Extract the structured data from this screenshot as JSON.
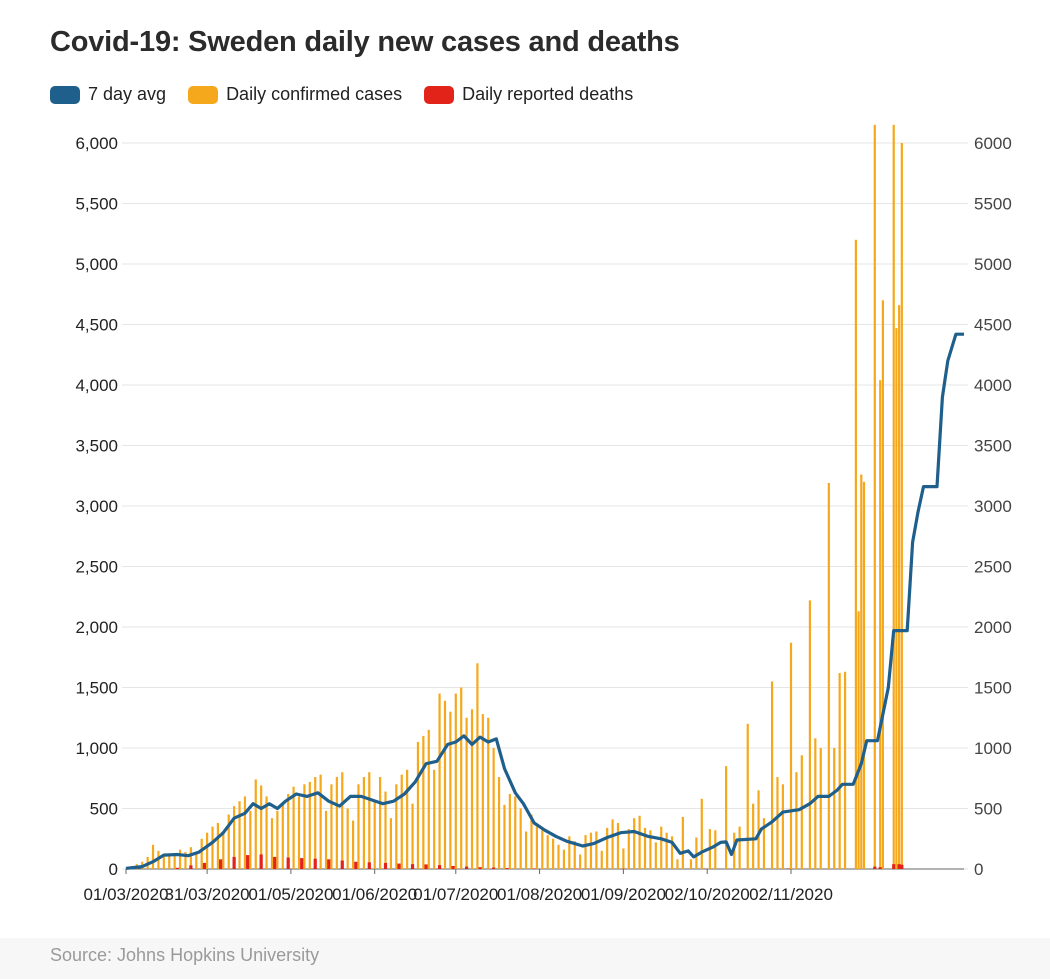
{
  "title": "Covid-19: Sweden daily new cases and deaths",
  "source": "Source: Johns Hopkins University",
  "colors": {
    "avg": "#1f5f8b",
    "cases": "#f5a81c",
    "deaths": "#e2231a",
    "grid": "#e6e6e6"
  },
  "legend": [
    {
      "label": "7 day avg",
      "color": "#1f5f8b"
    },
    {
      "label": "Daily confirmed cases",
      "color": "#f5a81c"
    },
    {
      "label": "Daily reported deaths",
      "color": "#e2231a"
    }
  ],
  "chart_data": {
    "type": "bar",
    "title": "Covid-19: Sweden daily new cases and deaths",
    "x_range": [
      "01/03/2020",
      "08/11/2020"
    ],
    "ylim": [
      0,
      6000
    ],
    "grid": true,
    "legend_position": "top-left",
    "y_ticks_left": [
      "0",
      "500",
      "1,000",
      "1,500",
      "2,000",
      "2,500",
      "3,000",
      "3,500",
      "4,000",
      "4,500",
      "5,000",
      "5,500",
      "6,000"
    ],
    "y_ticks_right": [
      "0",
      "500",
      "1000",
      "1500",
      "2000",
      "2500",
      "3000",
      "3500",
      "4000",
      "4500",
      "5000",
      "5500",
      "6000"
    ],
    "x_ticks": [
      {
        "label": "01/03/2020",
        "date": "2020-03-01"
      },
      {
        "label": "31/03/2020",
        "date": "2020-03-31"
      },
      {
        "label": "01/05/2020",
        "date": "2020-05-01"
      },
      {
        "label": "01/06/2020",
        "date": "2020-06-01"
      },
      {
        "label": "01/07/2020",
        "date": "2020-07-01"
      },
      {
        "label": "01/08/2020",
        "date": "2020-08-01"
      },
      {
        "label": "01/09/2020",
        "date": "2020-09-01"
      },
      {
        "label": "02/10/2020",
        "date": "2020-10-02"
      },
      {
        "label": "02/11/2020",
        "date": "2020-11-02"
      }
    ],
    "series": [
      {
        "name": "7 day avg",
        "type": "line",
        "points": [
          [
            "2020-03-01",
            5
          ],
          [
            "2020-03-07",
            20
          ],
          [
            "2020-03-11",
            60
          ],
          [
            "2020-03-15",
            115
          ],
          [
            "2020-03-20",
            120
          ],
          [
            "2020-03-24",
            110
          ],
          [
            "2020-03-28",
            140
          ],
          [
            "2020-04-02",
            220
          ],
          [
            "2020-04-06",
            300
          ],
          [
            "2020-04-10",
            420
          ],
          [
            "2020-04-14",
            460
          ],
          [
            "2020-04-17",
            540
          ],
          [
            "2020-04-20",
            500
          ],
          [
            "2020-04-23",
            540
          ],
          [
            "2020-04-26",
            500
          ],
          [
            "2020-04-29",
            560
          ],
          [
            "2020-05-03",
            620
          ],
          [
            "2020-05-07",
            600
          ],
          [
            "2020-05-11",
            630
          ],
          [
            "2020-05-15",
            560
          ],
          [
            "2020-05-19",
            520
          ],
          [
            "2020-05-23",
            600
          ],
          [
            "2020-05-27",
            600
          ],
          [
            "2020-05-31",
            570
          ],
          [
            "2020-06-04",
            540
          ],
          [
            "2020-06-08",
            560
          ],
          [
            "2020-06-12",
            620
          ],
          [
            "2020-06-16",
            720
          ],
          [
            "2020-06-20",
            870
          ],
          [
            "2020-06-24",
            890
          ],
          [
            "2020-06-28",
            1030
          ],
          [
            "2020-07-01",
            1050
          ],
          [
            "2020-07-04",
            1100
          ],
          [
            "2020-07-07",
            1030
          ],
          [
            "2020-07-10",
            1090
          ],
          [
            "2020-07-13",
            1050
          ],
          [
            "2020-07-16",
            1075
          ],
          [
            "2020-07-19",
            830
          ],
          [
            "2020-07-23",
            630
          ],
          [
            "2020-07-26",
            540
          ],
          [
            "2020-07-30",
            380
          ],
          [
            "2020-08-03",
            320
          ],
          [
            "2020-08-07",
            270
          ],
          [
            "2020-08-11",
            230
          ],
          [
            "2020-08-17",
            190
          ],
          [
            "2020-08-21",
            210
          ],
          [
            "2020-08-26",
            260
          ],
          [
            "2020-08-31",
            300
          ],
          [
            "2020-09-05",
            310
          ],
          [
            "2020-09-10",
            270
          ],
          [
            "2020-09-15",
            250
          ],
          [
            "2020-09-19",
            220
          ],
          [
            "2020-09-22",
            130
          ],
          [
            "2020-09-25",
            150
          ],
          [
            "2020-09-27",
            100
          ],
          [
            "2020-09-30",
            140
          ],
          [
            "2020-10-04",
            180
          ],
          [
            "2020-10-07",
            220
          ],
          [
            "2020-10-09",
            225
          ],
          [
            "2020-10-11",
            120
          ],
          [
            "2020-10-13",
            240
          ],
          [
            "2020-10-20",
            250
          ],
          [
            "2020-10-22",
            330
          ],
          [
            "2020-10-26",
            390
          ],
          [
            "2020-10-30",
            470
          ],
          [
            "2020-11-05",
            490
          ],
          [
            "2020-11-09",
            540
          ],
          [
            "2020-11-12",
            600
          ],
          [
            "2020-11-16",
            600
          ],
          [
            "2020-11-19",
            650
          ],
          [
            "2020-11-21",
            700
          ],
          [
            "2020-11-25",
            700
          ],
          [
            "2020-11-28",
            870
          ],
          [
            "2020-11-30",
            1060
          ],
          [
            "2020-12-04",
            1060
          ],
          [
            "2020-12-08",
            1500
          ],
          [
            "2020-12-10",
            1970
          ],
          [
            "2020-12-13",
            1970
          ],
          [
            "2020-12-15",
            1970
          ],
          [
            "2020-12-17",
            2700
          ],
          [
            "2020-12-19",
            2950
          ],
          [
            "2020-12-21",
            3160
          ],
          [
            "2020-12-26",
            3160
          ],
          [
            "2020-12-28",
            3900
          ],
          [
            "2020-12-30",
            4200
          ],
          [
            "2021-01-02",
            4420
          ],
          [
            "2021-01-05",
            4420
          ]
        ]
      },
      {
        "name": "Daily confirmed cases",
        "type": "bar",
        "points": [
          [
            "2020-03-01",
            5
          ],
          [
            "2020-03-03",
            20
          ],
          [
            "2020-03-05",
            40
          ],
          [
            "2020-03-07",
            60
          ],
          [
            "2020-03-09",
            100
          ],
          [
            "2020-03-11",
            200
          ],
          [
            "2020-03-13",
            150
          ],
          [
            "2020-03-15",
            100
          ],
          [
            "2020-03-17",
            120
          ],
          [
            "2020-03-19",
            130
          ],
          [
            "2020-03-21",
            160
          ],
          [
            "2020-03-23",
            140
          ],
          [
            "2020-03-25",
            180
          ],
          [
            "2020-03-27",
            130
          ],
          [
            "2020-03-29",
            250
          ],
          [
            "2020-03-31",
            300
          ],
          [
            "2020-04-02",
            350
          ],
          [
            "2020-04-04",
            380
          ],
          [
            "2020-04-06",
            300
          ],
          [
            "2020-04-08",
            450
          ],
          [
            "2020-04-10",
            520
          ],
          [
            "2020-04-12",
            560
          ],
          [
            "2020-04-14",
            600
          ],
          [
            "2020-04-16",
            480
          ],
          [
            "2020-04-18",
            740
          ],
          [
            "2020-04-20",
            690
          ],
          [
            "2020-04-22",
            600
          ],
          [
            "2020-04-24",
            420
          ],
          [
            "2020-04-26",
            480
          ],
          [
            "2020-04-28",
            550
          ],
          [
            "2020-04-30",
            620
          ],
          [
            "2020-05-02",
            680
          ],
          [
            "2020-05-04",
            600
          ],
          [
            "2020-05-06",
            700
          ],
          [
            "2020-05-08",
            720
          ],
          [
            "2020-05-10",
            760
          ],
          [
            "2020-05-12",
            780
          ],
          [
            "2020-05-14",
            480
          ],
          [
            "2020-05-16",
            700
          ],
          [
            "2020-05-18",
            760
          ],
          [
            "2020-05-20",
            800
          ],
          [
            "2020-05-22",
            500
          ],
          [
            "2020-05-24",
            400
          ],
          [
            "2020-05-26",
            700
          ],
          [
            "2020-05-28",
            760
          ],
          [
            "2020-05-30",
            800
          ],
          [
            "2020-06-01",
            560
          ],
          [
            "2020-06-03",
            760
          ],
          [
            "2020-06-05",
            640
          ],
          [
            "2020-06-07",
            420
          ],
          [
            "2020-06-09",
            700
          ],
          [
            "2020-06-11",
            780
          ],
          [
            "2020-06-13",
            820
          ],
          [
            "2020-06-15",
            540
          ],
          [
            "2020-06-17",
            1050
          ],
          [
            "2020-06-19",
            1100
          ],
          [
            "2020-06-21",
            1150
          ],
          [
            "2020-06-23",
            820
          ],
          [
            "2020-06-25",
            1450
          ],
          [
            "2020-06-27",
            1390
          ],
          [
            "2020-06-29",
            1300
          ],
          [
            "2020-07-01",
            1450
          ],
          [
            "2020-07-03",
            1500
          ],
          [
            "2020-07-05",
            1250
          ],
          [
            "2020-07-07",
            1320
          ],
          [
            "2020-07-09",
            1700
          ],
          [
            "2020-07-11",
            1280
          ],
          [
            "2020-07-13",
            1250
          ],
          [
            "2020-07-15",
            1000
          ],
          [
            "2020-07-17",
            760
          ],
          [
            "2020-07-19",
            530
          ],
          [
            "2020-07-21",
            620
          ],
          [
            "2020-07-23",
            600
          ],
          [
            "2020-07-25",
            500
          ],
          [
            "2020-07-27",
            310
          ],
          [
            "2020-07-29",
            450
          ],
          [
            "2020-07-31",
            350
          ],
          [
            "2020-08-02",
            320
          ],
          [
            "2020-08-04",
            280
          ],
          [
            "2020-08-06",
            250
          ],
          [
            "2020-08-08",
            200
          ],
          [
            "2020-08-10",
            160
          ],
          [
            "2020-08-12",
            270
          ],
          [
            "2020-08-14",
            230
          ],
          [
            "2020-08-16",
            120
          ],
          [
            "2020-08-18",
            280
          ],
          [
            "2020-08-20",
            300
          ],
          [
            "2020-08-22",
            310
          ],
          [
            "2020-08-24",
            150
          ],
          [
            "2020-08-26",
            340
          ],
          [
            "2020-08-28",
            410
          ],
          [
            "2020-08-30",
            380
          ],
          [
            "2020-09-01",
            170
          ],
          [
            "2020-09-03",
            330
          ],
          [
            "2020-09-05",
            420
          ],
          [
            "2020-09-07",
            440
          ],
          [
            "2020-09-09",
            340
          ],
          [
            "2020-09-11",
            320
          ],
          [
            "2020-09-13",
            220
          ],
          [
            "2020-09-15",
            350
          ],
          [
            "2020-09-17",
            300
          ],
          [
            "2020-09-19",
            270
          ],
          [
            "2020-09-21",
            80
          ],
          [
            "2020-09-23",
            430
          ],
          [
            "2020-09-26",
            80
          ],
          [
            "2020-09-28",
            260
          ],
          [
            "2020-09-30",
            580
          ],
          [
            "2020-10-03",
            330
          ],
          [
            "2020-10-05",
            320
          ],
          [
            "2020-10-07",
            0
          ],
          [
            "2020-10-09",
            850
          ],
          [
            "2020-10-12",
            300
          ],
          [
            "2020-10-14",
            350
          ],
          [
            "2020-10-17",
            1200
          ],
          [
            "2020-10-19",
            540
          ],
          [
            "2020-10-21",
            650
          ],
          [
            "2020-10-23",
            420
          ],
          [
            "2020-10-26",
            1550
          ],
          [
            "2020-10-28",
            760
          ],
          [
            "2020-10-30",
            700
          ],
          [
            "2020-11-02",
            1870
          ],
          [
            "2020-11-04",
            800
          ],
          [
            "2020-11-06",
            940
          ],
          [
            "2020-11-09",
            2220
          ],
          [
            "2020-11-11",
            1080
          ],
          [
            "2020-11-13",
            1000
          ],
          [
            "2020-11-16",
            3190
          ],
          [
            "2020-11-18",
            1000
          ],
          [
            "2020-11-20",
            1620
          ],
          [
            "2020-11-22",
            1630
          ],
          [
            "2020-11-26",
            5200
          ],
          [
            "2020-11-27",
            2130
          ],
          [
            "2020-11-28",
            3260
          ],
          [
            "2020-11-29",
            3200
          ],
          [
            "2020-12-03",
            6150
          ],
          [
            "2020-12-05",
            4040
          ],
          [
            "2020-12-06",
            4700
          ],
          [
            "2020-12-10",
            6150
          ],
          [
            "2020-12-11",
            4470
          ],
          [
            "2020-12-12",
            4660
          ],
          [
            "2020-12-13",
            6000
          ]
        ]
      },
      {
        "name": "Daily reported deaths",
        "type": "bar",
        "points": [
          [
            "2020-03-20",
            10
          ],
          [
            "2020-03-25",
            30
          ],
          [
            "2020-03-30",
            50
          ],
          [
            "2020-04-05",
            80
          ],
          [
            "2020-04-10",
            100
          ],
          [
            "2020-04-15",
            115
          ],
          [
            "2020-04-20",
            120
          ],
          [
            "2020-04-25",
            100
          ],
          [
            "2020-04-30",
            95
          ],
          [
            "2020-05-05",
            90
          ],
          [
            "2020-05-10",
            85
          ],
          [
            "2020-05-15",
            80
          ],
          [
            "2020-05-20",
            70
          ],
          [
            "2020-05-25",
            60
          ],
          [
            "2020-05-30",
            55
          ],
          [
            "2020-06-05",
            50
          ],
          [
            "2020-06-10",
            45
          ],
          [
            "2020-06-15",
            40
          ],
          [
            "2020-06-20",
            38
          ],
          [
            "2020-06-25",
            32
          ],
          [
            "2020-06-30",
            25
          ],
          [
            "2020-07-05",
            20
          ],
          [
            "2020-07-10",
            15
          ],
          [
            "2020-07-15",
            12
          ],
          [
            "2020-07-20",
            8
          ],
          [
            "2020-07-30",
            5
          ],
          [
            "2020-08-15",
            4
          ],
          [
            "2020-09-01",
            3
          ],
          [
            "2020-10-01",
            3
          ],
          [
            "2020-11-01",
            5
          ],
          [
            "2020-12-03",
            20
          ],
          [
            "2020-12-05",
            15
          ],
          [
            "2020-12-10",
            40
          ],
          [
            "2020-12-12",
            40
          ],
          [
            "2020-12-13",
            35
          ]
        ]
      }
    ]
  }
}
